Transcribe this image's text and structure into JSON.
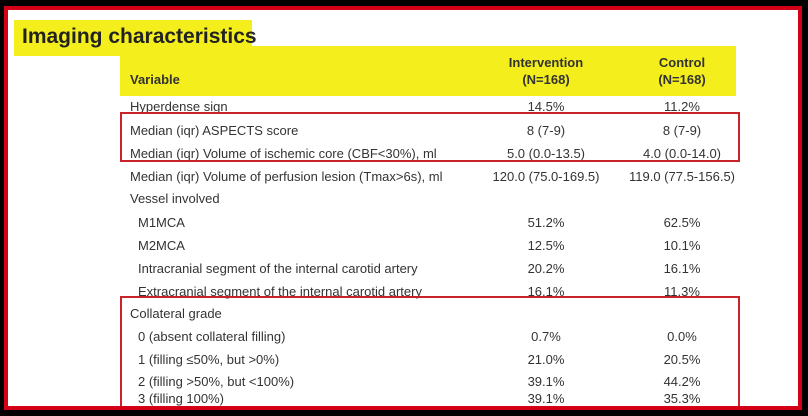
{
  "title": "Imaging characteristics",
  "header": {
    "variable": "Variable",
    "intervention_line1": "Intervention",
    "intervention_line2": "(N=168)",
    "control_line1": "Control",
    "control_line2": "(N=168)"
  },
  "rows": [
    {
      "label": "Hyperdense sign",
      "intervention": "14.5%",
      "control": "11.2%"
    },
    {
      "label": "Median (iqr) ASPECTS score",
      "intervention": "8 (7-9)",
      "control": "8 (7-9)"
    },
    {
      "label": "Median (iqr) Volume of ischemic core (CBF<30%), ml",
      "intervention": "5.0 (0.0-13.5)",
      "control": "4.0 (0.0-14.0)"
    },
    {
      "label": "Median (iqr) Volume of perfusion lesion (Tmax>6s), ml",
      "intervention": "120.0 (75.0-169.5)",
      "control": "119.0 (77.5-156.5)"
    },
    {
      "label": "Vessel involved",
      "intervention": "",
      "control": ""
    },
    {
      "label": "M1MCA",
      "intervention": "51.2%",
      "control": "62.5%"
    },
    {
      "label": "M2MCA",
      "intervention": "12.5%",
      "control": "10.1%"
    },
    {
      "label": "Intracranial segment of the internal carotid artery",
      "intervention": "20.2%",
      "control": "16.1%"
    },
    {
      "label": "Extracranial segment of the internal carotid artery",
      "intervention": "16.1%",
      "control": "11.3%"
    },
    {
      "label": "Collateral grade",
      "intervention": "",
      "control": ""
    },
    {
      "label": "0 (absent collateral filling)",
      "intervention": "0.7%",
      "control": "0.0%"
    },
    {
      "label": "1 (filling ≤50%, but >0%)",
      "intervention": "21.0%",
      "control": "20.5%"
    },
    {
      "label": "2 (filling >50%, but <100%)",
      "intervention": "39.1%",
      "control": "44.2%"
    },
    {
      "label": "3 (filling 100%)",
      "intervention": "39.1%",
      "control": "35.3%"
    }
  ]
}
